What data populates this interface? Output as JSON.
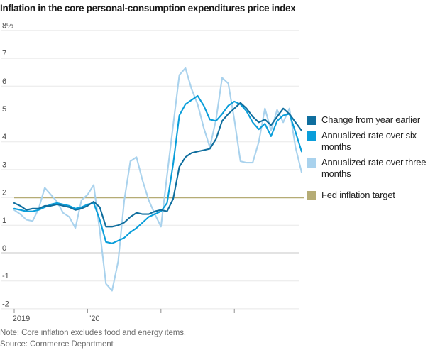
{
  "title": "Inflation in the core personal-consumption expenditures price index",
  "note": "Note: Core inflation excludes food and energy items.",
  "source": "Source: Commerce Department",
  "colors": {
    "yoy": "#0f6e9e",
    "six_month": "#0a9eda",
    "three_month": "#a9d2ed",
    "fed_target": "#b5ac75",
    "gridline": "#e8e8e8",
    "zero_line": "#8f8f8f",
    "axis_text": "#4a4a4a",
    "tick": "#8f8f8f"
  },
  "legend": {
    "items": [
      {
        "label": "Change from year earlier",
        "color": "#0f6e9e"
      },
      {
        "label": "Annualized rate over six months",
        "color": "#0a9eda"
      },
      {
        "label": "Annualized rate over three months",
        "color": "#a9d2ed"
      },
      {
        "label": "Fed inflation target",
        "color": "#b5ac75",
        "gap_before": true
      }
    ]
  },
  "chart_data": {
    "type": "line",
    "title": "Inflation in the core personal-consumption expenditures price index",
    "x_unit": "month",
    "x_start": "2019-01",
    "x_end": "2022-12",
    "ylim": [
      -2,
      8
    ],
    "y_ticks": [
      -2,
      -1,
      0,
      1,
      2,
      3,
      4,
      5,
      6,
      7,
      8
    ],
    "y_top_tick_label": "8%",
    "grid": "horizontal",
    "legend_position": "right",
    "x_ticks": [
      {
        "month_index": 0,
        "label": "2019"
      },
      {
        "month_index": 12,
        "label": "'20"
      },
      {
        "month_index": 24,
        "label": ""
      },
      {
        "month_index": 36,
        "label": ""
      }
    ],
    "target_line": {
      "name": "Fed inflation target",
      "value": 2,
      "color": "#b5ac75"
    },
    "series": [
      {
        "name": "Annualized rate over three months",
        "color": "#a9d2ed",
        "values": [
          1.55,
          1.4,
          1.2,
          1.15,
          1.6,
          2.35,
          2.1,
          1.85,
          1.45,
          1.3,
          0.9,
          1.9,
          2.1,
          2.45,
          0.8,
          -1.1,
          -1.35,
          -0.3,
          1.9,
          3.3,
          3.45,
          2.6,
          1.9,
          1.4,
          0.95,
          2.8,
          4.6,
          6.4,
          6.65,
          5.9,
          5.35,
          4.5,
          3.8,
          4.8,
          6.3,
          6.1,
          4.8,
          3.3,
          3.25,
          3.25,
          4.0,
          5.2,
          4.4,
          5.15,
          4.7,
          5.2,
          3.8,
          2.9
        ]
      },
      {
        "name": "Annualized rate over six months",
        "color": "#0a9eda",
        "values": [
          1.6,
          1.55,
          1.5,
          1.5,
          1.55,
          1.65,
          1.75,
          1.8,
          1.75,
          1.7,
          1.6,
          1.65,
          1.75,
          1.8,
          1.2,
          0.4,
          0.35,
          0.45,
          0.55,
          0.75,
          0.9,
          1.1,
          1.3,
          1.4,
          1.5,
          1.8,
          3.2,
          4.95,
          5.35,
          5.5,
          5.65,
          5.3,
          4.8,
          4.75,
          5.0,
          5.3,
          5.45,
          5.35,
          5.1,
          4.7,
          4.45,
          4.65,
          4.2,
          4.75,
          4.95,
          5.0,
          4.35,
          3.65
        ]
      },
      {
        "name": "Change from year earlier",
        "color": "#0f6e9e",
        "values": [
          1.8,
          1.7,
          1.55,
          1.6,
          1.6,
          1.7,
          1.7,
          1.75,
          1.7,
          1.65,
          1.55,
          1.6,
          1.7,
          1.85,
          1.65,
          0.95,
          0.95,
          1.0,
          1.1,
          1.3,
          1.45,
          1.4,
          1.4,
          1.5,
          1.55,
          1.5,
          1.95,
          3.1,
          3.45,
          3.6,
          3.65,
          3.7,
          3.75,
          4.1,
          4.75,
          5.0,
          5.2,
          5.4,
          5.2,
          4.9,
          4.7,
          4.8,
          4.6,
          4.9,
          5.2,
          5.0,
          4.7,
          4.4
        ]
      }
    ]
  }
}
